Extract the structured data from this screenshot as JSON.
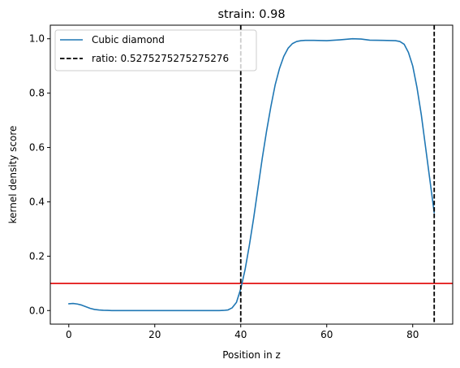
{
  "chart_data": {
    "type": "line",
    "title": "strain: 0.98",
    "xlabel": "Position in z",
    "ylabel": "kernel density score",
    "xlim": [
      -4.3,
      89.3
    ],
    "ylim": [
      -0.05,
      1.05
    ],
    "xticks": [
      0,
      20,
      40,
      60,
      80
    ],
    "xtick_labels": [
      "0",
      "20",
      "40",
      "60",
      "80"
    ],
    "yticks": [
      0.0,
      0.2,
      0.4,
      0.6,
      0.8,
      1.0
    ],
    "ytick_labels": [
      "0.0",
      "0.2",
      "0.4",
      "0.6",
      "0.8",
      "1.0"
    ],
    "grid": false,
    "legend_position": "upper-left",
    "series": [
      {
        "name": "Cubic diamond",
        "color": "#1f77b4",
        "style": "solid",
        "x": [
          0,
          1,
          2,
          3,
          4,
          5,
          6,
          7,
          8,
          9,
          10,
          12,
          15,
          20,
          25,
          30,
          33,
          35,
          36,
          37,
          38,
          39,
          40,
          41,
          42,
          43,
          44,
          45,
          46,
          47,
          48,
          49,
          50,
          51,
          52,
          53,
          54,
          55,
          57,
          60,
          63,
          66,
          68,
          70,
          73,
          76,
          77,
          78,
          79,
          80,
          81,
          82,
          83,
          84,
          85
        ],
        "y": [
          0.025,
          0.026,
          0.024,
          0.02,
          0.014,
          0.008,
          0.004,
          0.002,
          0.001,
          0.0005,
          0.0,
          0.0,
          0.0,
          0.0,
          0.0,
          0.0,
          0.0,
          0.0,
          0.0005,
          0.002,
          0.01,
          0.03,
          0.08,
          0.15,
          0.24,
          0.34,
          0.45,
          0.56,
          0.66,
          0.75,
          0.83,
          0.89,
          0.935,
          0.965,
          0.982,
          0.99,
          0.993,
          0.994,
          0.994,
          0.993,
          0.996,
          1.0,
          0.999,
          0.995,
          0.994,
          0.993,
          0.99,
          0.98,
          0.95,
          0.9,
          0.82,
          0.72,
          0.6,
          0.48,
          0.36
        ]
      }
    ],
    "vertical_lines": [
      {
        "name": "ratio: 0.5275275275275276",
        "x": 40,
        "color": "#000000",
        "style": "dashed"
      },
      {
        "x": 85,
        "color": "#000000",
        "style": "dashed"
      }
    ],
    "horizontal_lines": [
      {
        "y": 0.1,
        "color": "#e00000",
        "style": "solid"
      }
    ],
    "legend": [
      {
        "label": "Cubic diamond",
        "color": "#1f77b4",
        "style": "solid"
      },
      {
        "label": "ratio: 0.5275275275275276",
        "color": "#000000",
        "style": "dashed"
      }
    ]
  }
}
